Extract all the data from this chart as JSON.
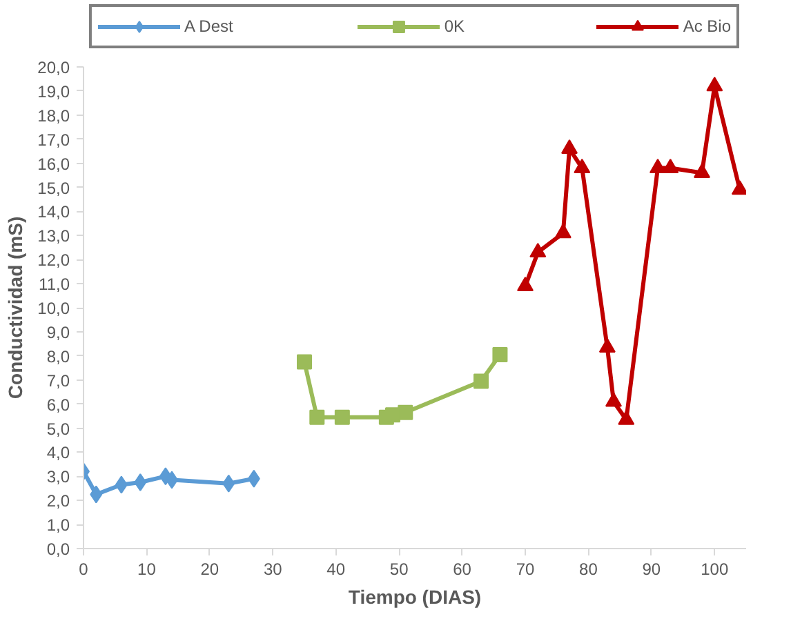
{
  "chart_data": {
    "type": "line",
    "xlabel": "Tiempo (DIAS)",
    "ylabel": "Conductividad (mS)",
    "series": [
      {
        "name": "A Dest",
        "color": "#5b9bd5",
        "marker": "diamond",
        "x": [
          0,
          2,
          6,
          9,
          13,
          14,
          23,
          27
        ],
        "values": [
          3.2,
          2.25,
          2.65,
          2.75,
          3.0,
          2.85,
          2.7,
          2.9
        ]
      },
      {
        "name": "0K",
        "color": "#9bbb59",
        "marker": "square",
        "x": [
          35,
          37,
          41,
          48,
          49,
          51,
          63,
          66
        ],
        "values": [
          7.75,
          5.45,
          5.45,
          5.45,
          5.55,
          5.65,
          6.95,
          8.05
        ]
      },
      {
        "name": "Ac Bio",
        "color": "#c00000",
        "marker": "triangle",
        "x": [
          70,
          72,
          76,
          77,
          79,
          83,
          84,
          86,
          91,
          93,
          98,
          100,
          104
        ],
        "values": [
          10.9,
          12.3,
          13.1,
          16.6,
          15.8,
          8.35,
          6.1,
          5.35,
          15.8,
          15.8,
          15.6,
          19.2,
          14.9
        ]
      }
    ],
    "xlim": [
      0,
      105
    ],
    "xticks": [
      0,
      10,
      20,
      30,
      40,
      50,
      60,
      70,
      80,
      90,
      100
    ],
    "ylim": [
      0,
      20
    ],
    "yticks": [
      {
        "value": 0,
        "label": "0,0"
      },
      {
        "value": 1,
        "label": "1,0"
      },
      {
        "value": 2,
        "label": "2,0"
      },
      {
        "value": 3,
        "label": "3,0"
      },
      {
        "value": 4,
        "label": "4,0"
      },
      {
        "value": 5,
        "label": "5,0"
      },
      {
        "value": 6,
        "label": "6,0"
      },
      {
        "value": 7,
        "label": "7,0"
      },
      {
        "value": 8,
        "label": "8,0"
      },
      {
        "value": 9,
        "label": "9,0"
      },
      {
        "value": 10,
        "label": "10,0"
      },
      {
        "value": 11,
        "label": "11,0"
      },
      {
        "value": 12,
        "label": "12,0"
      },
      {
        "value": 13,
        "label": "13,0"
      },
      {
        "value": 14,
        "label": "14,0"
      },
      {
        "value": 15,
        "label": "15,0"
      },
      {
        "value": 16,
        "label": "16,0"
      },
      {
        "value": 17,
        "label": "17,0"
      },
      {
        "value": 18,
        "label": "18,0"
      },
      {
        "value": 19,
        "label": "19,0"
      },
      {
        "value": 20,
        "label": "20,0"
      }
    ],
    "grid": false,
    "legend": "top",
    "line_style": "solid"
  }
}
